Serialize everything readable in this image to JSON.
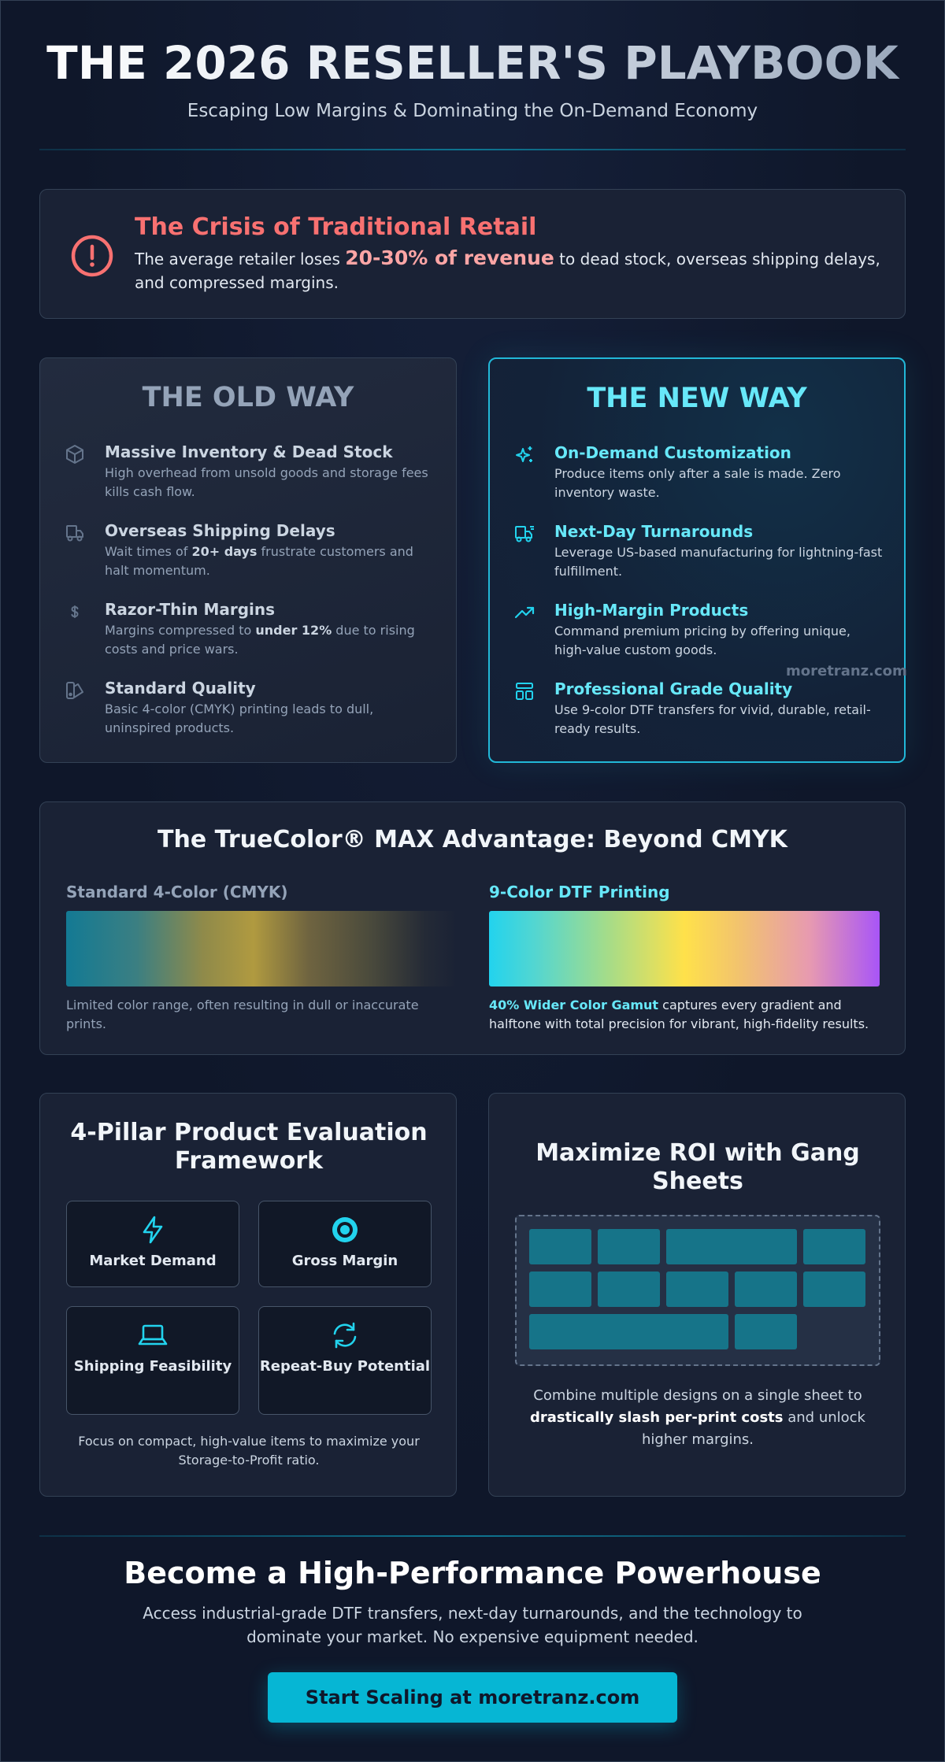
{
  "header": {
    "title": "THE 2026 RESELLER'S PLAYBOOK",
    "subtitle": "Escaping Low Margins & Dominating the On-Demand Economy"
  },
  "crisis": {
    "title": "The Crisis of Traditional Retail",
    "text_before": "The average retailer loses ",
    "highlight": "20-30% of revenue",
    "text_after": " to dead stock, overseas shipping delays, and compressed margins.",
    "icon": "alert-circle-icon",
    "color": "#f87171"
  },
  "old_way": {
    "heading": "THE OLD WAY",
    "items": [
      {
        "icon": "box-icon",
        "title": "Massive Inventory & Dead Stock",
        "desc": "High overhead from unsold goods and storage fees kills cash flow."
      },
      {
        "icon": "truck-icon",
        "title": "Overseas Shipping Delays",
        "desc_pre": "Wait times of ",
        "desc_bold": "20+ days",
        "desc_post": " frustrate customers and halt momentum."
      },
      {
        "icon": "dollar-icon",
        "title": "Razor-Thin Margins",
        "desc_pre": "Margins compressed to ",
        "desc_bold": "under 12%",
        "desc_post": " due to rising costs and price wars."
      },
      {
        "icon": "swatch-icon",
        "title": "Standard Quality",
        "desc": "Basic 4-color (CMYK) printing leads to dull, uninspired products."
      }
    ]
  },
  "new_way": {
    "heading": "THE NEW WAY",
    "accent": "#22d3ee",
    "items": [
      {
        "icon": "sparkles-icon",
        "title": "On-Demand Customization",
        "desc": "Produce items only after a sale is made. Zero inventory waste."
      },
      {
        "icon": "fast-truck-icon",
        "title": "Next-Day Turnarounds",
        "desc": "Leverage US-based manufacturing for lightning-fast fulfillment."
      },
      {
        "icon": "trending-up-icon",
        "title": "High-Margin Products",
        "desc": "Command premium pricing by offering unique, high-value custom goods."
      },
      {
        "icon": "layout-icon",
        "title": "Professional Grade Quality",
        "desc": "Use 9-color DTF transfers for vivid, durable, retail-ready results."
      }
    ]
  },
  "watermark": "moretranz.com",
  "truecolor": {
    "title": "The TrueColor® MAX Advantage: Beyond CMYK",
    "standard": {
      "label": "Standard 4-Color (CMYK)",
      "desc": "Limited color range, often resulting in dull or inaccurate prints."
    },
    "dtf": {
      "label": "9-Color DTF Printing",
      "desc_bold": "40% Wider Color Gamut",
      "desc_post": " captures every gradient and halftone with total precision for vibrant, high-fidelity results."
    }
  },
  "pillars": {
    "title": "4-Pillar Product Evaluation Framework",
    "items": [
      {
        "icon": "bolt-icon",
        "label": "Market Demand"
      },
      {
        "icon": "target-icon",
        "label": "Gross Margin"
      },
      {
        "icon": "laptop-icon",
        "label": "Shipping Feasibility"
      },
      {
        "icon": "refresh-icon",
        "label": "Repeat-Buy Potential"
      }
    ],
    "footer": "Focus on compact, high-value items to maximize your Storage-to-Profit ratio."
  },
  "gang": {
    "title": "Maximize ROI with Gang Sheets",
    "footer_pre": "Combine multiple designs on a single sheet to ",
    "footer_bold": "drastically slash per-print costs",
    "footer_post": " and unlock higher margins."
  },
  "cta": {
    "title": "Become a High-Performance Powerhouse",
    "desc": "Access industrial-grade DTF transfers, next-day turnarounds, and the technology to dominate your market. No expensive equipment needed.",
    "button": "Start Scaling at moretranz.com"
  }
}
